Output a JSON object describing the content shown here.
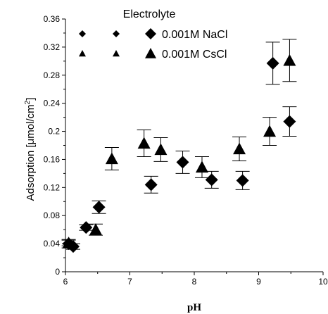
{
  "chart_data": {
    "type": "scatter",
    "xlabel": "pH",
    "ylabel_prefix": "Adsorption [",
    "ylabel_mu": "μ",
    "ylabel_unit": "mol/cm",
    "ylabel_sup": "2",
    "ylabel_suffix": "]",
    "xlim": [
      6,
      10
    ],
    "ylim": [
      0,
      0.36
    ],
    "x_ticks": [
      "6",
      "7",
      "8",
      "9",
      "10"
    ],
    "y_ticks": [
      "0",
      "0.04",
      "0.08",
      "0.12",
      "0.16",
      "0.2",
      "0.24",
      "0.28",
      "0.32",
      "0.36"
    ],
    "grid": false,
    "legend": {
      "title": "Electrolyte",
      "placement": "top-center"
    },
    "series": [
      {
        "name": "0.001M NaCl",
        "marker": "diamond",
        "color": "#000000",
        "points": [
          {
            "x": 6.05,
            "y": 0.04,
            "err": 0.006
          },
          {
            "x": 6.12,
            "y": 0.036,
            "err": 0.004
          },
          {
            "x": 6.32,
            "y": 0.063,
            "err": 0.004
          },
          {
            "x": 6.52,
            "y": 0.092,
            "err": 0.009
          },
          {
            "x": 7.33,
            "y": 0.124,
            "err": 0.012
          },
          {
            "x": 7.82,
            "y": 0.156,
            "err": 0.016
          },
          {
            "x": 8.27,
            "y": 0.131,
            "err": 0.012
          },
          {
            "x": 8.75,
            "y": 0.13,
            "err": 0.013
          },
          {
            "x": 9.22,
            "y": 0.297,
            "err": 0.03
          },
          {
            "x": 9.48,
            "y": 0.214,
            "err": 0.021
          }
        ]
      },
      {
        "name": "0.001M CsCl",
        "marker": "triangle",
        "color": "#000000",
        "points": [
          {
            "x": 6.05,
            "y": 0.041,
            "err": 0.004
          },
          {
            "x": 6.47,
            "y": 0.06,
            "err": 0.008
          },
          {
            "x": 6.72,
            "y": 0.161,
            "err": 0.016
          },
          {
            "x": 7.22,
            "y": 0.183,
            "err": 0.019
          },
          {
            "x": 7.48,
            "y": 0.174,
            "err": 0.017
          },
          {
            "x": 8.12,
            "y": 0.149,
            "err": 0.015
          },
          {
            "x": 8.7,
            "y": 0.175,
            "err": 0.017
          },
          {
            "x": 9.17,
            "y": 0.2,
            "err": 0.02
          },
          {
            "x": 9.48,
            "y": 0.301,
            "err": 0.03
          }
        ]
      }
    ]
  }
}
